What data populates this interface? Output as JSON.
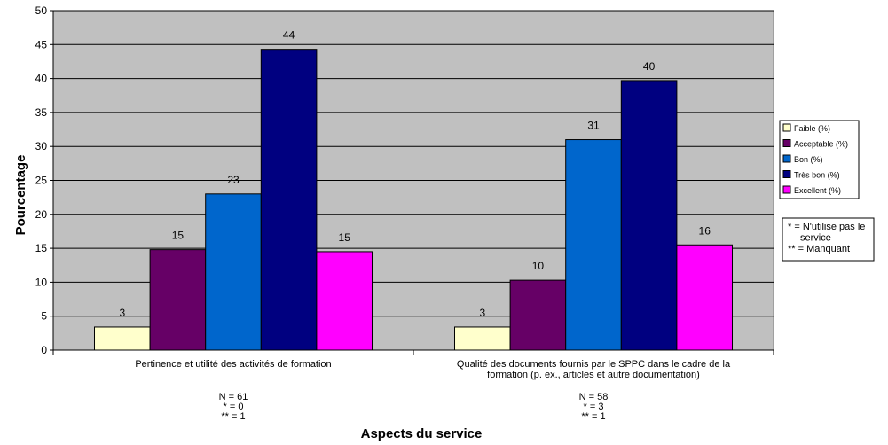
{
  "chart_data": {
    "type": "bar",
    "title": "",
    "ylabel": "Pourcentage",
    "xlabel": "Aspects du service",
    "ylim": [
      0,
      50
    ],
    "yticks": [
      0,
      5,
      10,
      15,
      20,
      25,
      30,
      35,
      40,
      45,
      50
    ],
    "grid": true,
    "legend_position": "right",
    "categories": [
      {
        "label_lines": [
          "Pertinence et utilité des activités de formation"
        ],
        "notes": [
          "N = 61",
          "* = 0",
          "** = 1"
        ]
      },
      {
        "label_lines": [
          "Qualité des documents fournis par le SPPC dans le cadre de la",
          "formation (p. ex., articles et autre documentation)"
        ],
        "notes": [
          "N = 58",
          "* = 3",
          "** = 1"
        ]
      }
    ],
    "series": [
      {
        "name": "Faible (%)",
        "color": "#ffffcc",
        "values": [
          3.4,
          3.4
        ],
        "labels": [
          "3",
          "3"
        ]
      },
      {
        "name": "Acceptable (%)",
        "color": "#660066",
        "values": [
          14.8,
          10.3
        ],
        "labels": [
          "15",
          "10"
        ]
      },
      {
        "name": "Bon (%)",
        "color": "#0066cc",
        "values": [
          23.0,
          31.0
        ],
        "labels": [
          "23",
          "31"
        ]
      },
      {
        "name": "Très bon (%)",
        "color": "#000080",
        "values": [
          44.3,
          39.7
        ],
        "labels": [
          "44",
          "40"
        ]
      },
      {
        "name": "Excellent (%)",
        "color": "#ff00ff",
        "values": [
          14.5,
          15.5
        ],
        "labels": [
          "15",
          "16"
        ]
      }
    ],
    "footnote_lines": [
      "* = N'utilise pas le",
      "service",
      "** = Manquant"
    ]
  }
}
